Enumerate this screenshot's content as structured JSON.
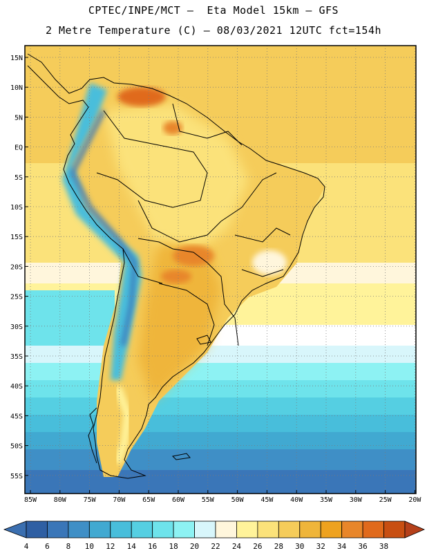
{
  "header": {
    "line1": "CPTEC/INPE/MCT –  Eta Model 15km – GFS",
    "line2": "2 Metre Temperature (C) – 08/03/2021 12UTC fct=154h"
  },
  "map": {
    "lat_labels": [
      "15N",
      "10N",
      "5N",
      "EQ",
      "5S",
      "10S",
      "15S",
      "20S",
      "25S",
      "30S",
      "35S",
      "40S",
      "45S",
      "50S",
      "55S"
    ],
    "lon_labels": [
      "85W",
      "80W",
      "75W",
      "70W",
      "65W",
      "60W",
      "55W",
      "50W",
      "45W",
      "40W",
      "35W",
      "30W",
      "25W",
      "20W"
    ]
  },
  "colorbar": {
    "labels": [
      "4",
      "6",
      "8",
      "10",
      "12",
      "14",
      "16",
      "18",
      "20",
      "22",
      "24",
      "26",
      "28",
      "30",
      "32",
      "34",
      "36",
      "38"
    ],
    "colors": [
      "#2f5fa3",
      "#3a76b8",
      "#3f8fc6",
      "#41a9d1",
      "#48bedb",
      "#55cfe2",
      "#6ee3eb",
      "#8df2f3",
      "#d8f6fb",
      "#fff6dc",
      "#fff39a",
      "#fbe27a",
      "#f5cc5a",
      "#efb53a",
      "#eea21f",
      "#e8862a",
      "#e06a1c",
      "#c84f12"
    ],
    "end_left": "#3b6fb0",
    "end_right": "#b5401a"
  }
}
